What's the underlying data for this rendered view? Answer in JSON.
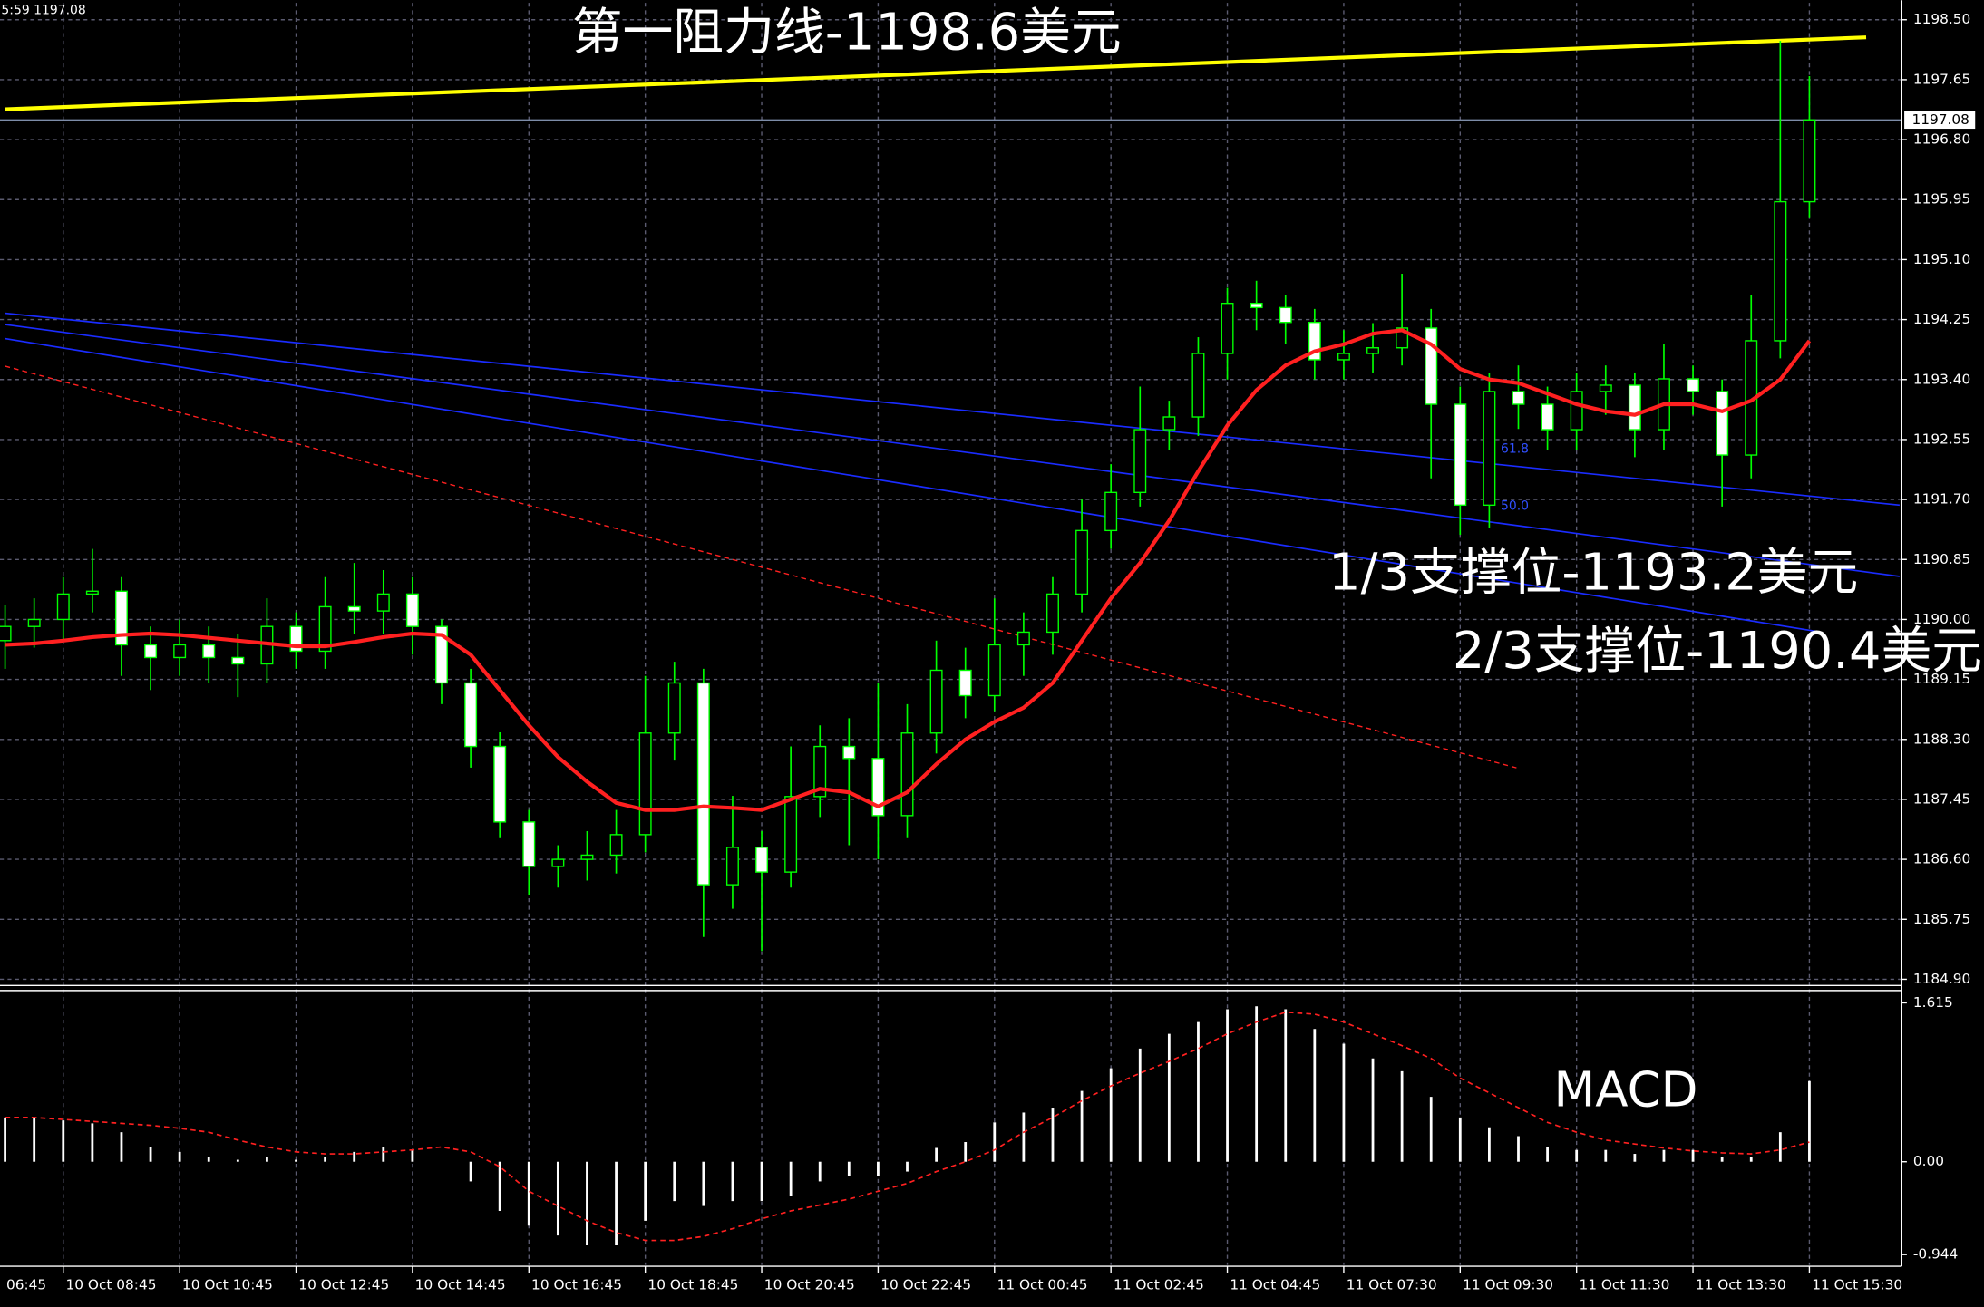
{
  "chart_data": [
    {
      "type": "candlestick",
      "header": "5:59 1197.08",
      "x_labels": [
        "06:45",
        "10 Oct 08:45",
        "10 Oct 10:45",
        "10 Oct 12:45",
        "10 Oct 14:45",
        "10 Oct 16:45",
        "10 Oct 18:45",
        "10 Oct 20:45",
        "10 Oct 22:45",
        "11 Oct 00:45",
        "11 Oct 02:45",
        "11 Oct 04:45",
        "11 Oct 07:30",
        "11 Oct 09:30",
        "11 Oct 11:30",
        "11 Oct 13:30",
        "11 Oct 15:30"
      ],
      "open": [
        1189.7,
        1189.9,
        1190.0,
        1190.36,
        1190.4,
        1189.64,
        1189.46,
        1189.64,
        1189.46,
        1189.37,
        1189.9,
        1189.55,
        1190.18,
        1190.12,
        1190.36,
        1189.9,
        1189.1,
        1188.2,
        1187.13,
        1186.5,
        1186.6,
        1186.66,
        1186.95,
        1188.39,
        1189.1,
        1186.24,
        1186.77,
        1186.42,
        1187.49,
        1188.2,
        1188.03,
        1187.22,
        1188.39,
        1189.28,
        1188.92,
        1189.64,
        1189.82,
        1190.36,
        1191.26,
        1191.8,
        1192.69,
        1192.87,
        1193.77,
        1194.48,
        1194.42,
        1194.21,
        1193.68,
        1193.77,
        1193.85,
        1194.13,
        1193.05,
        1191.62,
        1193.23,
        1193.05,
        1192.69,
        1193.23,
        1193.32,
        1192.69,
        1193.41,
        1193.23,
        1192.33,
        1193.95,
        1195.92
      ],
      "high": [
        1190.2,
        1190.3,
        1190.6,
        1191.0,
        1190.6,
        1189.9,
        1190.0,
        1189.9,
        1189.8,
        1190.3,
        1190.1,
        1190.6,
        1190.8,
        1190.7,
        1190.6,
        1190.0,
        1189.3,
        1188.4,
        1187.3,
        1186.8,
        1187.0,
        1187.3,
        1189.2,
        1189.4,
        1189.3,
        1187.5,
        1187.0,
        1188.2,
        1188.5,
        1188.6,
        1189.1,
        1188.8,
        1189.7,
        1189.6,
        1190.3,
        1190.1,
        1190.6,
        1191.7,
        1192.2,
        1193.3,
        1193.1,
        1194.0,
        1194.7,
        1194.8,
        1194.6,
        1194.4,
        1194.1,
        1194.2,
        1194.9,
        1194.4,
        1193.3,
        1193.5,
        1193.6,
        1193.3,
        1193.5,
        1193.6,
        1193.5,
        1193.9,
        1193.6,
        1193.4,
        1194.6,
        1198.2,
        1197.7
      ],
      "low": [
        1189.3,
        1189.6,
        1189.7,
        1190.1,
        1189.2,
        1189.0,
        1189.2,
        1189.1,
        1188.9,
        1189.1,
        1189.3,
        1189.3,
        1189.8,
        1189.8,
        1189.5,
        1188.8,
        1187.9,
        1186.9,
        1186.1,
        1186.2,
        1186.3,
        1186.4,
        1186.7,
        1188.0,
        1185.5,
        1185.9,
        1185.3,
        1186.2,
        1187.2,
        1186.8,
        1186.6,
        1186.9,
        1188.1,
        1188.6,
        1188.7,
        1189.2,
        1189.5,
        1190.1,
        1191.0,
        1191.6,
        1192.4,
        1192.6,
        1193.4,
        1194.1,
        1193.9,
        1193.4,
        1193.4,
        1193.5,
        1193.6,
        1192.0,
        1191.2,
        1191.3,
        1192.7,
        1192.4,
        1192.4,
        1192.9,
        1192.3,
        1192.4,
        1192.9,
        1191.6,
        1192.0,
        1193.7,
        1195.7
      ],
      "close": [
        1189.9,
        1190.0,
        1190.36,
        1190.4,
        1189.64,
        1189.46,
        1189.64,
        1189.46,
        1189.37,
        1189.9,
        1189.55,
        1190.18,
        1190.12,
        1190.36,
        1189.9,
        1189.1,
        1188.2,
        1187.13,
        1186.5,
        1186.6,
        1186.66,
        1186.95,
        1188.39,
        1189.1,
        1186.24,
        1186.77,
        1186.42,
        1187.49,
        1188.2,
        1188.03,
        1187.22,
        1188.39,
        1189.28,
        1188.92,
        1189.64,
        1189.82,
        1190.36,
        1191.26,
        1191.8,
        1192.69,
        1192.87,
        1193.77,
        1194.48,
        1194.42,
        1194.21,
        1193.68,
        1193.77,
        1193.85,
        1194.13,
        1193.05,
        1191.62,
        1193.23,
        1193.05,
        1192.69,
        1193.23,
        1193.32,
        1192.69,
        1193.41,
        1193.23,
        1192.33,
        1193.95,
        1195.92,
        1197.08
      ],
      "up_color": "#000000",
      "down_color": "#ffffff",
      "wick_color": "#00ff00",
      "ma": {
        "color": "#ff2020",
        "values": [
          1189.64,
          1189.66,
          1189.7,
          1189.75,
          1189.78,
          1189.8,
          1189.78,
          1189.74,
          1189.7,
          1189.66,
          1189.62,
          1189.62,
          1189.68,
          1189.75,
          1189.8,
          1189.78,
          1189.5,
          1189.0,
          1188.5,
          1188.05,
          1187.7,
          1187.4,
          1187.3,
          1187.3,
          1187.35,
          1187.33,
          1187.3,
          1187.45,
          1187.6,
          1187.55,
          1187.35,
          1187.55,
          1187.95,
          1188.3,
          1188.55,
          1188.75,
          1189.1,
          1189.7,
          1190.3,
          1190.8,
          1191.4,
          1192.1,
          1192.75,
          1193.25,
          1193.6,
          1193.8,
          1193.9,
          1194.05,
          1194.1,
          1193.9,
          1193.55,
          1193.4,
          1193.35,
          1193.2,
          1193.05,
          1192.95,
          1192.9,
          1193.05,
          1193.05,
          1192.95,
          1193.1,
          1193.4,
          1193.95
        ]
      },
      "lines": [
        {
          "color": "#ffff00",
          "width": 3,
          "dashed": false,
          "points": [
            [
              0,
              1197.23
            ],
            [
              63.95,
              1198.25
            ]
          ]
        },
        {
          "color": "#1a2cff",
          "width": 1.2,
          "dashed": false,
          "points": [
            [
              0,
              1194.34
            ],
            [
              65.1,
              1191.62
            ]
          ]
        },
        {
          "color": "#1a2cff",
          "width": 1.2,
          "dashed": false,
          "points": [
            [
              0,
              1194.18
            ],
            [
              65.1,
              1190.61
            ]
          ]
        },
        {
          "color": "#1a2cff",
          "width": 1.2,
          "dashed": false,
          "points": [
            [
              0,
              1193.98
            ],
            [
              62.4,
              1189.82
            ]
          ]
        },
        {
          "color": "#ff2020",
          "width": 1,
          "dashed": true,
          "points": [
            [
              0,
              1193.59
            ],
            [
              52,
              1187.89
            ]
          ]
        }
      ],
      "fib_labels": [
        "61.8",
        "50.0"
      ],
      "annotations": [
        "第一阻力线-1198.6美元",
        "1/3支撑位-1193.2美元",
        "2/3支撑位-1190.4美元"
      ],
      "current_price": {
        "value": 1197.08,
        "label": "1197.08",
        "color": "#7d8ca8"
      },
      "ylim": [
        1184.83,
        1198.74
      ],
      "yticks": [
        {
          "value": 1198.5,
          "label": "1198.50"
        },
        1197.65,
        {
          "value": 1196.8,
          "label": "1196.80"
        },
        1195.95,
        {
          "value": 1195.1,
          "label": "1195.10"
        },
        1194.25,
        {
          "value": 1193.4,
          "label": "1193.40"
        },
        1192.55,
        {
          "value": 1191.7,
          "label": "1191.70"
        },
        1190.85,
        {
          "value": 1190,
          "label": "1190.00"
        },
        1189.15,
        {
          "value": 1188.3,
          "label": "1188.30"
        },
        1187.45,
        {
          "value": 1186.6,
          "label": "1186.60"
        },
        1185.75,
        {
          "value": 1184.9,
          "label": "1184.90"
        }
      ],
      "grid": true
    },
    {
      "type": "macd",
      "title": "MACD",
      "color": "#ffffff",
      "values": [
        0.45,
        0.45,
        0.42,
        0.39,
        0.3,
        0.15,
        0.1,
        0.05,
        0.02,
        0.05,
        0.02,
        0.05,
        0.1,
        0.15,
        0.12,
        0,
        -0.2,
        -0.5,
        -0.65,
        -0.75,
        -0.85,
        -0.85,
        -0.6,
        -0.4,
        -0.45,
        -0.4,
        -0.4,
        -0.35,
        -0.2,
        -0.15,
        -0.15,
        -0.1,
        0.14,
        0.2,
        0.4,
        0.5,
        0.55,
        0.72,
        0.95,
        1.15,
        1.3,
        1.42,
        1.55,
        1.58,
        1.55,
        1.35,
        1.2,
        1.05,
        0.92,
        0.66,
        0.45,
        0.35,
        0.26,
        0.15,
        0.12,
        0.12,
        0.08,
        0.12,
        0.12,
        0.05,
        0.05,
        0.3,
        0.82
      ],
      "signal": {
        "color": "#ff2020",
        "values": [
          0.45,
          0.45,
          0.43,
          0.41,
          0.39,
          0.37,
          0.34,
          0.3,
          0.22,
          0.15,
          0.1,
          0.08,
          0.08,
          0.1,
          0.12,
          0.15,
          0.1,
          -0.05,
          -0.3,
          -0.45,
          -0.6,
          -0.72,
          -0.8,
          -0.8,
          -0.76,
          -0.68,
          -0.58,
          -0.5,
          -0.44,
          -0.38,
          -0.3,
          -0.22,
          -0.1,
          0,
          0.12,
          0.3,
          0.45,
          0.62,
          0.77,
          0.9,
          1.02,
          1.15,
          1.3,
          1.42,
          1.52,
          1.5,
          1.42,
          1.3,
          1.18,
          1.05,
          0.85,
          0.7,
          0.55,
          0.4,
          0.3,
          0.22,
          0.18,
          0.14,
          0.11,
          0.09,
          0.08,
          0.12,
          0.2
        ]
      },
      "ylim": [
        -1.05,
        1.74
      ],
      "yticks": [
        1.615,
        {
          "value": 0,
          "label": "0.00"
        },
        -0.944
      ]
    }
  ]
}
